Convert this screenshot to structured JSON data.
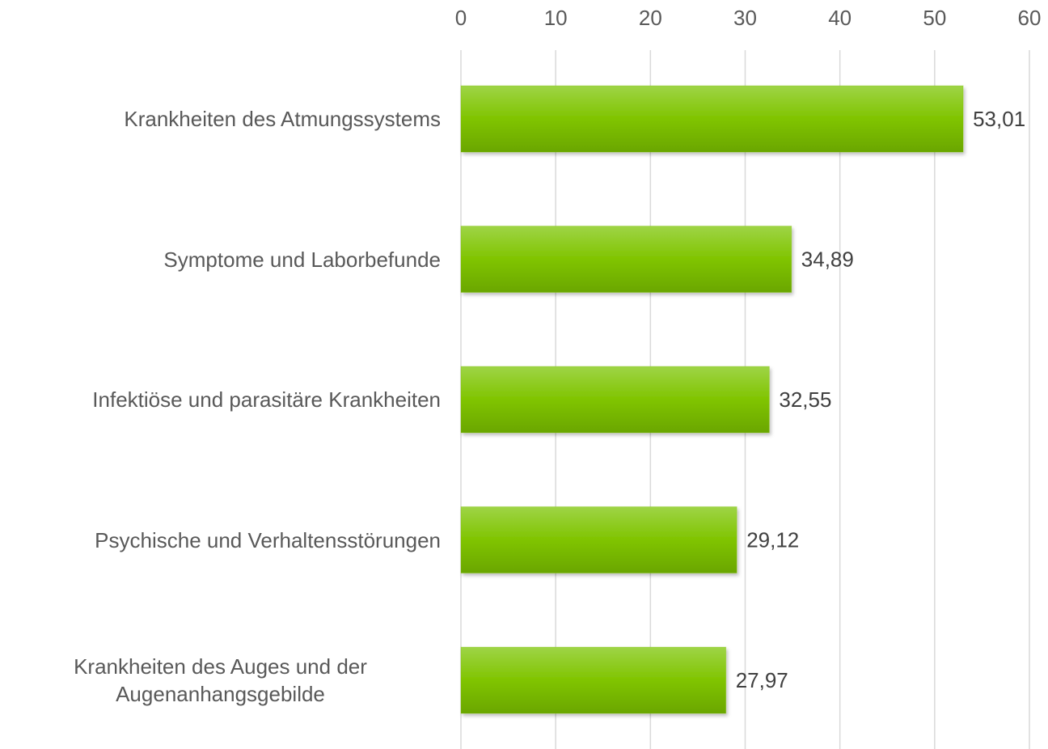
{
  "chart_data": {
    "type": "hbar",
    "categories": [
      "Krankheiten des Atmungssystems",
      "Symptome und Laborbefunde",
      "Infektiöse und parasitäre Krankheiten",
      "Psychische und Verhaltensstörungen",
      "Krankheiten des Auges und der Augenanhangsgebilde"
    ],
    "values": [
      53.01,
      34.89,
      32.55,
      29.12,
      27.97
    ],
    "value_labels": [
      "53,01",
      "34,89",
      "32,55",
      "29,12",
      "27,97"
    ],
    "color": "#7fbf00",
    "xlim": [
      0,
      60
    ],
    "xticks": [
      0,
      10,
      20,
      30,
      40,
      50,
      60
    ],
    "grid": true
  }
}
